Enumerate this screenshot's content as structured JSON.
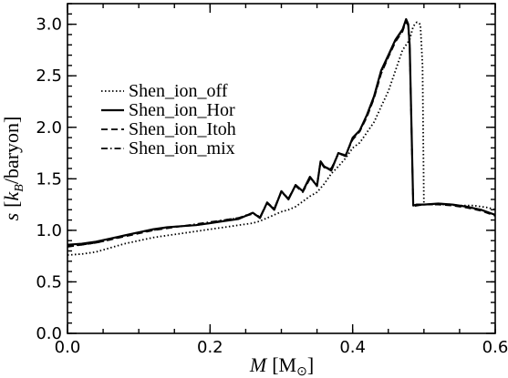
{
  "chart_data": {
    "type": "line",
    "xlabel": {
      "italic": "M",
      "unit": "M",
      "unit_symbol": "⊙"
    },
    "ylabel": {
      "italic": "s",
      "open": "[",
      "kb": "k",
      "kb_sub": "B",
      "unit": "/baryon]"
    },
    "xlim": [
      0.0,
      0.6
    ],
    "ylim": [
      0.0,
      3.2
    ],
    "x_ticks": [
      "0.0",
      "0.2",
      "0.4",
      "0.6"
    ],
    "y_ticks": [
      "0.0",
      "0.5",
      "1.0",
      "1.5",
      "2.0",
      "2.5",
      "3.0"
    ],
    "grid": false,
    "legend_position": "top-left",
    "series": [
      {
        "name": "Shen_ion_off",
        "dash": "dotted",
        "x": [
          0.0,
          0.02,
          0.04,
          0.06,
          0.08,
          0.1,
          0.12,
          0.14,
          0.16,
          0.18,
          0.2,
          0.22,
          0.24,
          0.26,
          0.27,
          0.28,
          0.3,
          0.31,
          0.32,
          0.33,
          0.34,
          0.35,
          0.36,
          0.37,
          0.38,
          0.39,
          0.4,
          0.41,
          0.42,
          0.43,
          0.44,
          0.45,
          0.46,
          0.47,
          0.48,
          0.485,
          0.49,
          0.495,
          0.498,
          0.5,
          0.51,
          0.53,
          0.55,
          0.57,
          0.59,
          0.6
        ],
        "y": [
          0.76,
          0.77,
          0.79,
          0.83,
          0.87,
          0.9,
          0.93,
          0.95,
          0.97,
          0.99,
          1.01,
          1.03,
          1.05,
          1.07,
          1.09,
          1.12,
          1.18,
          1.2,
          1.23,
          1.28,
          1.33,
          1.37,
          1.45,
          1.55,
          1.62,
          1.7,
          1.8,
          1.85,
          1.95,
          2.05,
          2.2,
          2.35,
          2.55,
          2.75,
          2.85,
          2.98,
          3.02,
          3.0,
          2.6,
          1.25,
          1.25,
          1.25,
          1.24,
          1.24,
          1.22,
          1.2
        ]
      },
      {
        "name": "Shen_ion_Hor",
        "dash": "solid",
        "x": [
          0.0,
          0.02,
          0.04,
          0.06,
          0.08,
          0.1,
          0.12,
          0.14,
          0.16,
          0.18,
          0.2,
          0.22,
          0.24,
          0.26,
          0.27,
          0.28,
          0.29,
          0.3,
          0.31,
          0.32,
          0.33,
          0.34,
          0.35,
          0.355,
          0.36,
          0.37,
          0.38,
          0.39,
          0.4,
          0.41,
          0.42,
          0.43,
          0.44,
          0.45,
          0.46,
          0.47,
          0.475,
          0.478,
          0.48,
          0.485,
          0.49,
          0.5,
          0.52,
          0.54,
          0.56,
          0.58,
          0.6
        ],
        "y": [
          0.86,
          0.87,
          0.89,
          0.92,
          0.95,
          0.98,
          1.01,
          1.03,
          1.04,
          1.05,
          1.07,
          1.09,
          1.11,
          1.17,
          1.12,
          1.27,
          1.2,
          1.38,
          1.3,
          1.44,
          1.38,
          1.52,
          1.43,
          1.67,
          1.62,
          1.58,
          1.75,
          1.72,
          1.9,
          1.97,
          2.12,
          2.3,
          2.55,
          2.7,
          2.85,
          2.95,
          3.05,
          3.0,
          2.8,
          1.24,
          1.25,
          1.25,
          1.26,
          1.25,
          1.23,
          1.2,
          1.15
        ]
      },
      {
        "name": "Shen_ion_Itoh",
        "dash": "dashed",
        "x": [
          0.0,
          0.02,
          0.04,
          0.06,
          0.08,
          0.1,
          0.12,
          0.14,
          0.16,
          0.18,
          0.2,
          0.22,
          0.24,
          0.26,
          0.27,
          0.28,
          0.29,
          0.3,
          0.31,
          0.32,
          0.33,
          0.34,
          0.35,
          0.355,
          0.36,
          0.37,
          0.38,
          0.39,
          0.4,
          0.41,
          0.42,
          0.43,
          0.44,
          0.45,
          0.46,
          0.47,
          0.475,
          0.478,
          0.48,
          0.485,
          0.49,
          0.5,
          0.52,
          0.54,
          0.56,
          0.58,
          0.6
        ],
        "y": [
          0.84,
          0.86,
          0.88,
          0.91,
          0.94,
          0.97,
          1.0,
          1.02,
          1.04,
          1.05,
          1.07,
          1.1,
          1.12,
          1.16,
          1.13,
          1.26,
          1.21,
          1.37,
          1.31,
          1.43,
          1.37,
          1.5,
          1.44,
          1.66,
          1.61,
          1.6,
          1.74,
          1.73,
          1.88,
          1.96,
          2.1,
          2.28,
          2.52,
          2.68,
          2.83,
          2.93,
          3.03,
          2.98,
          2.78,
          1.23,
          1.24,
          1.25,
          1.25,
          1.24,
          1.22,
          1.19,
          1.14
        ]
      },
      {
        "name": "Shen_ion_mix",
        "dash": "dash-dot",
        "x": [
          0.0,
          0.02,
          0.04,
          0.06,
          0.08,
          0.1,
          0.12,
          0.14,
          0.16,
          0.18,
          0.2,
          0.22,
          0.24,
          0.26,
          0.27,
          0.28,
          0.29,
          0.3,
          0.31,
          0.32,
          0.33,
          0.34,
          0.35,
          0.355,
          0.36,
          0.37,
          0.38,
          0.39,
          0.4,
          0.41,
          0.42,
          0.43,
          0.44,
          0.45,
          0.46,
          0.47,
          0.475,
          0.478,
          0.48,
          0.485,
          0.49,
          0.5,
          0.52,
          0.54,
          0.56,
          0.58,
          0.6
        ],
        "y": [
          0.85,
          0.86,
          0.88,
          0.91,
          0.95,
          0.98,
          1.0,
          1.03,
          1.04,
          1.06,
          1.08,
          1.1,
          1.12,
          1.17,
          1.13,
          1.27,
          1.21,
          1.38,
          1.31,
          1.44,
          1.38,
          1.51,
          1.44,
          1.67,
          1.62,
          1.59,
          1.75,
          1.73,
          1.89,
          1.97,
          2.11,
          2.29,
          2.53,
          2.69,
          2.84,
          2.94,
          3.04,
          2.99,
          2.79,
          1.24,
          1.25,
          1.25,
          1.26,
          1.25,
          1.23,
          1.2,
          1.15
        ]
      }
    ]
  }
}
